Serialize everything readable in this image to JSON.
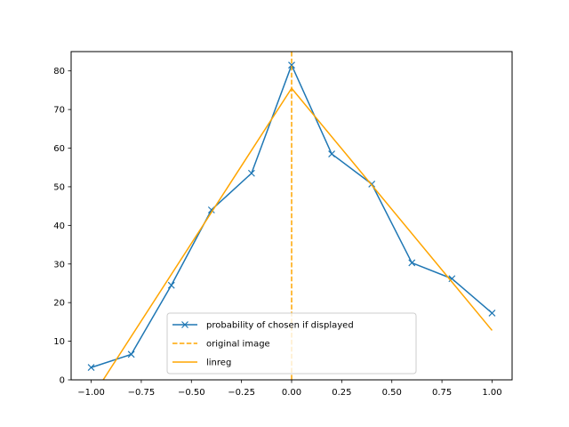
{
  "chart_data": {
    "type": "line",
    "title": "",
    "xlabel": "",
    "ylabel": "",
    "xlim": [
      -1.1,
      1.1
    ],
    "ylim": [
      0,
      85
    ],
    "x_ticks": [
      -1.0,
      -0.75,
      -0.5,
      -0.25,
      0.0,
      0.25,
      0.5,
      0.75,
      1.0
    ],
    "x_tick_labels": [
      "−1.00",
      "−0.75",
      "−0.50",
      "−0.25",
      "0.00",
      "0.25",
      "0.50",
      "0.75",
      "1.00"
    ],
    "y_ticks": [
      0,
      10,
      20,
      30,
      40,
      50,
      60,
      70,
      80
    ],
    "y_tick_labels": [
      "0",
      "10",
      "20",
      "30",
      "40",
      "50",
      "60",
      "70",
      "80"
    ],
    "grid": false,
    "legend_position": "bottom-center",
    "series": [
      {
        "name": "probability of chosen if displayed",
        "color": "#1f77b4",
        "style": "solid",
        "marker": "x",
        "x": [
          -1.0,
          -0.8,
          -0.6,
          -0.4,
          -0.2,
          0.0,
          0.2,
          0.4,
          0.6,
          0.8,
          1.0
        ],
        "y": [
          3.2,
          6.6,
          24.5,
          44.0,
          53.5,
          81.5,
          58.5,
          50.7,
          30.3,
          26.2,
          17.3
        ]
      },
      {
        "name": "original image",
        "color": "#ffa500",
        "style": "dashed",
        "marker": "none",
        "vertical_x": 0.0
      },
      {
        "name": "linreg",
        "color": "#ffa500",
        "style": "solid",
        "marker": "none",
        "x": [
          -0.94,
          0.0,
          1.0
        ],
        "y": [
          0,
          75.5,
          12.8
        ]
      }
    ]
  }
}
